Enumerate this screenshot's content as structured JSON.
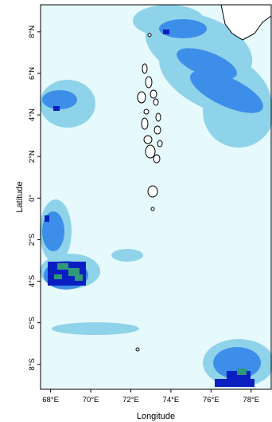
{
  "map": {
    "xlabel": "Longitude",
    "ylabel": "Latitude",
    "lon_range": [
      67.5,
      79.0
    ],
    "lat_range": [
      -9.2,
      9.3
    ],
    "x_ticks": [
      {
        "value": 68,
        "label": "68°E"
      },
      {
        "value": 70,
        "label": "70°E"
      },
      {
        "value": 72,
        "label": "72°E"
      },
      {
        "value": 74,
        "label": "74°E"
      },
      {
        "value": 76,
        "label": "76°E"
      },
      {
        "value": 78,
        "label": "78°E"
      }
    ],
    "y_ticks": [
      {
        "value": 8,
        "label": "8°N"
      },
      {
        "value": 6,
        "label": "6°N"
      },
      {
        "value": 4,
        "label": "4°N"
      },
      {
        "value": 2,
        "label": "2°N"
      },
      {
        "value": 0,
        "label": "0°"
      },
      {
        "value": -2,
        "label": "2°S"
      },
      {
        "value": -4,
        "label": "4°S"
      },
      {
        "value": -6,
        "label": "6°S"
      },
      {
        "value": -8,
        "label": "8°S"
      }
    ],
    "colors": {
      "background": "#e6f9fc",
      "level_1": "#8fd3ea",
      "level_2": "#3d8ee8",
      "level_3": "#0a1fbf",
      "level_4": "#2e9a78",
      "coastline": "#000000",
      "land": "#ffffff"
    },
    "grid": false
  }
}
